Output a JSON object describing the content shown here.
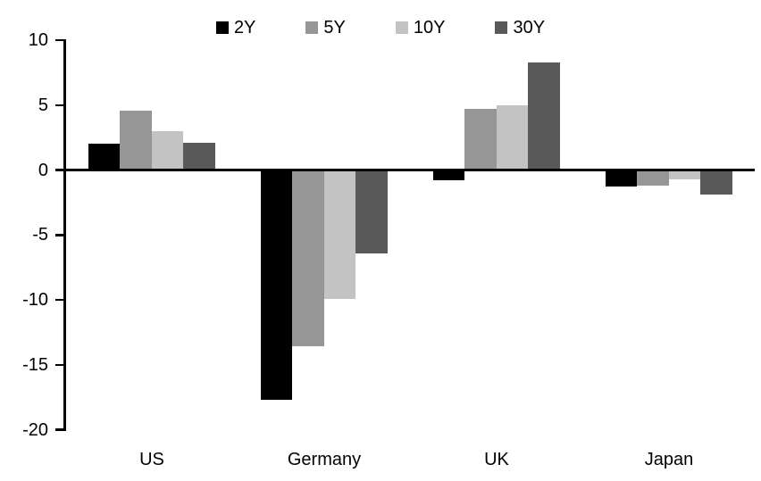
{
  "chart_data": {
    "type": "bar",
    "title": "",
    "categories": [
      "US",
      "Germany",
      "UK",
      "Japan"
    ],
    "series": [
      {
        "name": "2Y",
        "color": "#000000",
        "values": [
          2.0,
          -17.7,
          -0.8,
          -1.3
        ]
      },
      {
        "name": "5Y",
        "color": "#969696",
        "values": [
          4.6,
          -13.6,
          4.7,
          -1.2
        ]
      },
      {
        "name": "10Y",
        "color": "#c3c3c3",
        "values": [
          3.0,
          -9.9,
          5.0,
          -0.7
        ]
      },
      {
        "name": "30Y",
        "color": "#595959",
        "values": [
          2.1,
          -6.4,
          8.3,
          -1.9
        ]
      }
    ],
    "xlabel": "",
    "ylabel": "",
    "ylim": [
      -20,
      10
    ],
    "yticks": [
      10,
      5,
      0,
      -5,
      -10,
      -15,
      -20
    ],
    "grid": false,
    "legend_position": "top-center",
    "background": "#ffffff",
    "axis_color": "#000000"
  }
}
